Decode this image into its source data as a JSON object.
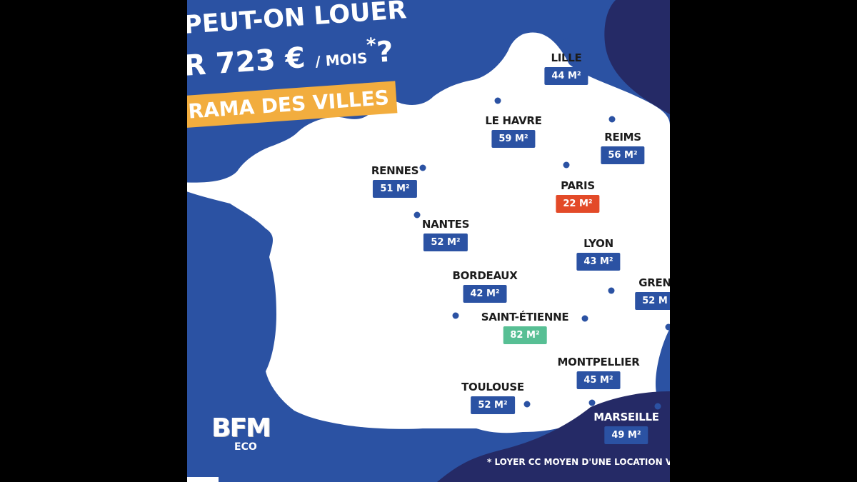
{
  "header": {
    "line1": "PEUT-ON LOUER",
    "line2_main": "R 723 € ",
    "line2_small": "/ MOIS",
    "line2_sup": "*",
    "line2_end": "?",
    "banner": "RAMA DES VILLES"
  },
  "cities": [
    {
      "id": "lille",
      "name": "LILLE",
      "surface": "44 M²",
      "color": "#2b52a3"
    },
    {
      "id": "le-havre",
      "name": "LE HAVRE",
      "surface": "59 M²",
      "color": "#2b52a3"
    },
    {
      "id": "reims",
      "name": "REIMS",
      "surface": "56 M²",
      "color": "#2b52a3"
    },
    {
      "id": "rennes",
      "name": "RENNES",
      "surface": "51 M²",
      "color": "#2b52a3"
    },
    {
      "id": "paris",
      "name": "PARIS",
      "surface": "22 M²",
      "color": "#e34a28"
    },
    {
      "id": "nantes",
      "name": "NANTES",
      "surface": "52 M²",
      "color": "#2b52a3"
    },
    {
      "id": "lyon",
      "name": "LYON",
      "surface": "43 M²",
      "color": "#2b52a3"
    },
    {
      "id": "bordeaux",
      "name": "BORDEAUX",
      "surface": "42 M²",
      "color": "#2b52a3"
    },
    {
      "id": "grenoble",
      "name": "GREN",
      "surface": "52 M",
      "color": "#2b52a3"
    },
    {
      "id": "saint-etienne",
      "name": "SAINT-ÉTIENNE",
      "surface": "82 M²",
      "color": "#57bf94"
    },
    {
      "id": "montpellier",
      "name": "MONTPELLIER",
      "surface": "45 M²",
      "color": "#2b52a3"
    },
    {
      "id": "toulouse",
      "name": "TOULOUSE",
      "surface": "52 M²",
      "color": "#2b52a3"
    },
    {
      "id": "marseille",
      "name": "MARSEILLE",
      "surface": "49 M²",
      "color": "#2b52a3"
    }
  ],
  "logo": {
    "main": "BFM",
    "sub": "ECO"
  },
  "footnote": "* LOYER CC MOYEN D'UNE LOCATION VIDE EN FRA",
  "colors": {
    "sea": "#2b52a3",
    "dark_navy": "#252a66",
    "land": "#ffffff",
    "banner": "#f2ad3e",
    "highlight_red": "#e34a28",
    "highlight_green": "#57bf94"
  }
}
